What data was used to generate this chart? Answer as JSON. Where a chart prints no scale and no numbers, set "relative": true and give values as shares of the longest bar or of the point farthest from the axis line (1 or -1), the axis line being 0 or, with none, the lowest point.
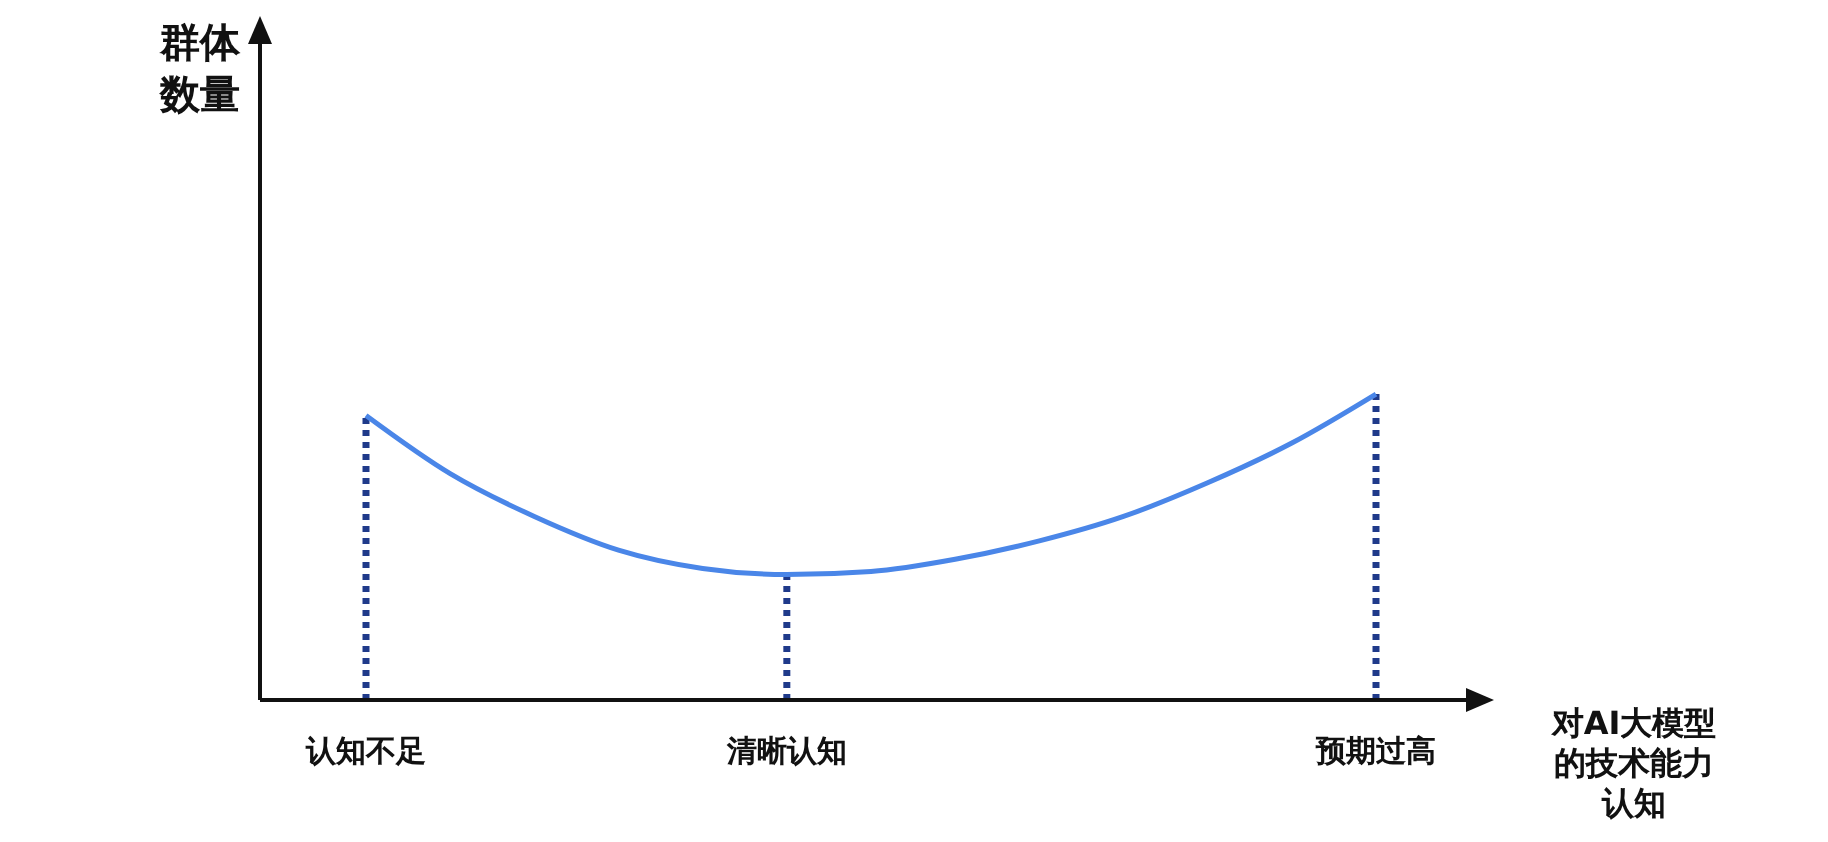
{
  "chart_data": {
    "type": "line",
    "relative": true,
    "xlabel": "对AI大模型的技术能力认知",
    "annotations": [
      "群体数量"
    ],
    "categories": [
      "认知不足",
      null,
      null,
      null,
      null,
      "清晰认知",
      null,
      null,
      null,
      null,
      null,
      null,
      "预期过高"
    ],
    "series": [
      {
        "color": "#4a86e8",
        "values": [
          0.93,
          0.74,
          0.6,
          0.49,
          0.43,
          0.41,
          0.42,
          0.46,
          0.52,
          0.6,
          0.71,
          0.84,
          1
        ]
      }
    ],
    "ref_lines": [
      {
        "axis": "x",
        "value": "认知不足",
        "color": "#1f3a8a",
        "line_style": "dotted"
      },
      {
        "axis": "x",
        "value": "清晰认知",
        "color": "#1f3a8a",
        "line_style": "dotted"
      },
      {
        "axis": "x",
        "value": "预期过高",
        "color": "#1f3a8a",
        "line_style": "dotted"
      }
    ]
  }
}
